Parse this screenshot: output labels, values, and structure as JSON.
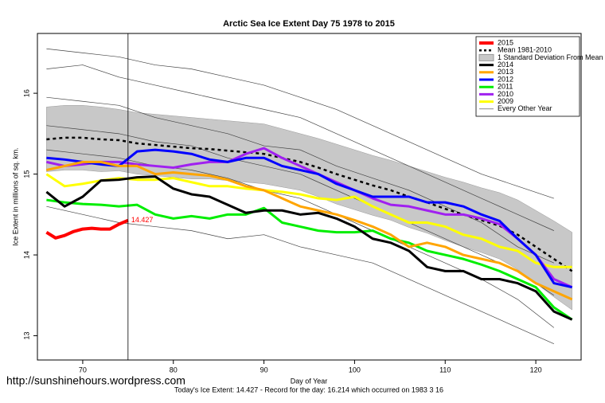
{
  "chart_data": {
    "type": "line",
    "title": "Arctic Sea Ice Extent Day 75 1978 to 2015",
    "x_label": "Day of Year",
    "y_label": "Ice Extent in millions of sq. km.",
    "footnote": "Today's Ice Extent: 14.427  - Record for the day: 16.214 which occurred on 1983 3 16",
    "watermark": "http://sunshinehours.wordpress.com",
    "annotation": "14.427",
    "marker_x": 75,
    "xlim": [
      65,
      125
    ],
    "ylim": [
      12.7,
      16.74
    ],
    "xticks": [
      70,
      80,
      90,
      100,
      110,
      120
    ],
    "yticks": [
      13,
      14,
      15,
      16
    ],
    "x": [
      66,
      68,
      70,
      72,
      74,
      76,
      78,
      80,
      82,
      84,
      86,
      88,
      90,
      92,
      94,
      96,
      98,
      100,
      102,
      104,
      106,
      108,
      110,
      112,
      114,
      116,
      118,
      120,
      122,
      124
    ],
    "background": {
      "name": "Every Other Year",
      "color": "#444444",
      "x": [
        66,
        70,
        74,
        78,
        82,
        86,
        90,
        94,
        98,
        102,
        106,
        110,
        114,
        118,
        122
      ],
      "lines": [
        [
          16.55,
          16.5,
          16.45,
          16.35,
          16.3,
          16.2,
          16.1,
          15.95,
          15.8,
          15.6,
          15.4,
          15.2,
          15.0,
          14.85,
          14.7
        ],
        [
          16.3,
          16.35,
          16.2,
          16.1,
          16.0,
          15.9,
          15.8,
          15.7,
          15.5,
          15.3,
          15.1,
          14.9,
          14.7,
          14.5,
          14.3
        ],
        [
          15.95,
          15.9,
          15.85,
          15.7,
          15.6,
          15.5,
          15.35,
          15.3,
          15.1,
          14.95,
          14.8,
          14.6,
          14.4,
          14.1,
          13.9
        ],
        [
          15.6,
          15.55,
          15.5,
          15.4,
          15.35,
          15.2,
          15.1,
          15.0,
          14.8,
          14.6,
          14.4,
          14.2,
          14.0,
          13.8,
          13.5
        ],
        [
          15.3,
          15.25,
          15.2,
          15.1,
          15.05,
          14.95,
          14.8,
          14.7,
          14.5,
          14.3,
          14.1,
          13.9,
          13.7,
          13.45,
          13.1
        ],
        [
          14.6,
          14.5,
          14.4,
          14.35,
          14.3,
          14.2,
          14.25,
          14.1,
          14.0,
          13.9,
          13.7,
          13.5,
          13.3,
          13.1,
          12.9
        ]
      ]
    },
    "band": {
      "name": "1 Standard Deviation From Mean",
      "color": "#c8c8c8",
      "upper": [
        15.83,
        15.85,
        15.85,
        15.83,
        15.8,
        15.76,
        15.74,
        15.72,
        15.7,
        15.68,
        15.66,
        15.64,
        15.62,
        15.56,
        15.5,
        15.44,
        15.37,
        15.3,
        15.23,
        15.17,
        15.1,
        15.03,
        14.96,
        14.9,
        14.83,
        14.77,
        14.68,
        14.55,
        14.42,
        14.28
      ],
      "lower": [
        15.03,
        15.05,
        15.05,
        15.03,
        15.04,
        15.0,
        14.98,
        14.96,
        14.94,
        14.94,
        14.92,
        14.9,
        14.88,
        14.84,
        14.8,
        14.72,
        14.63,
        14.56,
        14.49,
        14.43,
        14.34,
        14.27,
        14.18,
        14.1,
        14.03,
        13.95,
        13.82,
        13.65,
        13.48,
        13.32
      ]
    },
    "mean": {
      "name": "Mean 1981-2010",
      "color": "#000000",
      "values": [
        15.43,
        15.45,
        15.45,
        15.43,
        15.42,
        15.38,
        15.36,
        15.34,
        15.32,
        15.31,
        15.29,
        15.27,
        15.25,
        15.2,
        15.15,
        15.08,
        15.0,
        14.93,
        14.86,
        14.8,
        14.72,
        14.65,
        14.57,
        14.5,
        14.43,
        14.36,
        14.25,
        14.1,
        13.95,
        13.8
      ]
    },
    "series": [
      {
        "name": "2015",
        "color": "#ff0000",
        "x": [
          66,
          67,
          68,
          69,
          70,
          71,
          72,
          73,
          74,
          75
        ],
        "values": [
          14.28,
          14.21,
          14.24,
          14.29,
          14.32,
          14.33,
          14.32,
          14.32,
          14.38,
          14.427
        ]
      },
      {
        "name": "2014",
        "color": "#000000",
        "values": [
          14.78,
          14.6,
          14.72,
          14.92,
          14.93,
          14.96,
          14.97,
          14.82,
          14.75,
          14.72,
          14.62,
          14.52,
          14.55,
          14.55,
          14.5,
          14.52,
          14.45,
          14.35,
          14.2,
          14.15,
          14.05,
          13.85,
          13.8,
          13.8,
          13.7,
          13.7,
          13.65,
          13.55,
          13.3,
          13.2
        ]
      },
      {
        "name": "2013",
        "color": "#ffa500",
        "values": [
          15.05,
          15.1,
          15.15,
          15.15,
          15.1,
          15.1,
          15.0,
          15.02,
          15.0,
          14.98,
          14.93,
          14.85,
          14.8,
          14.7,
          14.6,
          14.55,
          14.5,
          14.43,
          14.35,
          14.25,
          14.1,
          14.15,
          14.1,
          14.0,
          13.95,
          13.9,
          13.8,
          13.65,
          13.55,
          13.45
        ]
      },
      {
        "name": "2012",
        "color": "#0000ff",
        "values": [
          15.2,
          15.18,
          15.15,
          15.12,
          15.1,
          15.28,
          15.3,
          15.28,
          15.25,
          15.18,
          15.15,
          15.2,
          15.2,
          15.1,
          15.05,
          15.0,
          14.88,
          14.8,
          14.72,
          14.72,
          14.72,
          14.65,
          14.65,
          14.6,
          14.5,
          14.42,
          14.2,
          14.0,
          13.65,
          13.6
        ]
      },
      {
        "name": "2011",
        "color": "#00ee00",
        "values": [
          14.68,
          14.65,
          14.63,
          14.62,
          14.6,
          14.62,
          14.5,
          14.45,
          14.48,
          14.45,
          14.5,
          14.5,
          14.58,
          14.4,
          14.35,
          14.3,
          14.28,
          14.28,
          14.3,
          14.2,
          14.15,
          14.05,
          14.0,
          13.95,
          13.88,
          13.8,
          13.7,
          13.6,
          13.35,
          13.2
        ]
      },
      {
        "name": "2010",
        "color": "#a020f0",
        "values": [
          15.15,
          15.1,
          15.12,
          15.15,
          15.15,
          15.12,
          15.1,
          15.08,
          15.12,
          15.15,
          15.15,
          15.25,
          15.32,
          15.2,
          15.1,
          15.0,
          14.9,
          14.8,
          14.7,
          14.62,
          14.6,
          14.55,
          14.5,
          14.5,
          14.45,
          14.38,
          14.2,
          14.0,
          13.7,
          13.6
        ]
      },
      {
        "name": "2009",
        "color": "#ffff00",
        "values": [
          15.0,
          14.85,
          14.88,
          14.92,
          14.95,
          14.93,
          14.93,
          14.95,
          14.9,
          14.85,
          14.85,
          14.82,
          14.8,
          14.78,
          14.75,
          14.7,
          14.68,
          14.72,
          14.6,
          14.5,
          14.4,
          14.4,
          14.35,
          14.25,
          14.2,
          14.1,
          14.05,
          13.9,
          13.85,
          13.85
        ]
      }
    ]
  }
}
